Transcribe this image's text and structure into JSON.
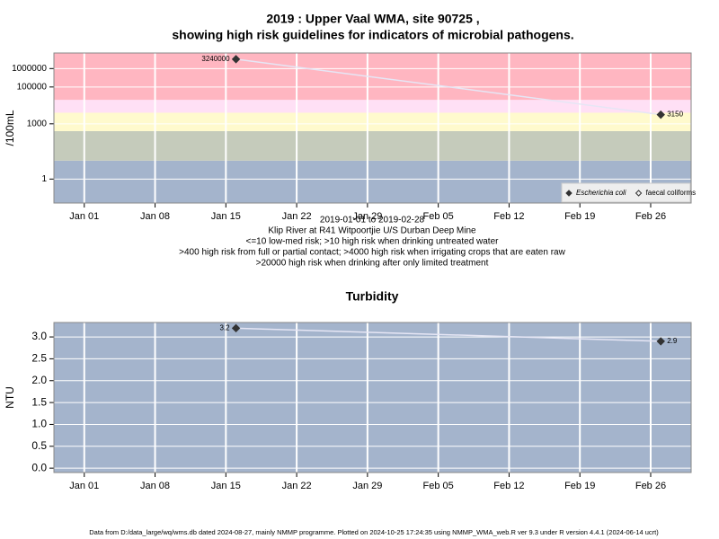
{
  "chart_data": [
    {
      "type": "line",
      "title": "2019 : Upper Vaal WMA, site 90725 ,",
      "subtitle": "showing high risk guidelines for indicators of microbial pathogens.",
      "y_label": "/100mL",
      "log_y": true,
      "notes": [
        "2019-01-01 to 2019-02-28",
        "Klip River at R41 Witpoortjie U/S Durban Deep Mine",
        "<=10 low-med risk; >10 high risk when drinking untreated water",
        ">400 high risk from full or partial contact; >4000 high risk when irrigating crops that are eaten raw",
        ">20000 high risk when drinking after only limited treatment"
      ],
      "x": [
        "2019-01-16",
        "2019-02-27"
      ],
      "xlim": [
        "2018-12-29",
        "2019-03-02"
      ],
      "xticks": [
        {
          "value": "2019-01-01",
          "label": "Jan 01"
        },
        {
          "value": "2019-01-08",
          "label": "Jan 08"
        },
        {
          "value": "2019-01-15",
          "label": "Jan 15"
        },
        {
          "value": "2019-01-22",
          "label": "Jan 22"
        },
        {
          "value": "2019-01-29",
          "label": "Jan 29"
        },
        {
          "value": "2019-02-05",
          "label": "Feb 05"
        },
        {
          "value": "2019-02-12",
          "label": "Feb 12"
        },
        {
          "value": "2019-02-19",
          "label": "Feb 19"
        },
        {
          "value": "2019-02-26",
          "label": "Feb 26"
        }
      ],
      "ylim": [
        0.05,
        7000000
      ],
      "yticks": [
        1,
        1000,
        100000,
        1000000
      ],
      "bands": [
        {
          "from": 0.05,
          "to": 10,
          "color": "#a4b4cc"
        },
        {
          "from": 10,
          "to": 400,
          "color": "#c5cbbb"
        },
        {
          "from": 400,
          "to": 4000,
          "color": "#fffacd"
        },
        {
          "from": 4000,
          "to": 20000,
          "color": "#ffe0f5"
        },
        {
          "from": 20000,
          "to": 7000000,
          "color": "#ffb6c1"
        }
      ],
      "grid": true,
      "legend": "bottom-right",
      "series": [
        {
          "name": "Escherichia coli",
          "color": "#333333",
          "marker": "filled",
          "values": [
            3240000,
            3150
          ]
        },
        {
          "name": "faecal coliforms",
          "color": "#333333",
          "marker": "open",
          "values": [
            null,
            null
          ]
        }
      ]
    },
    {
      "type": "line",
      "title": "Turbidity",
      "y_label": "NTU",
      "background": "#a4b4cc",
      "x": [
        "2019-01-16",
        "2019-02-27"
      ],
      "xlim": [
        "2018-12-29",
        "2019-03-02"
      ],
      "xticks": [
        {
          "value": "2019-01-01",
          "label": "Jan 01"
        },
        {
          "value": "2019-01-08",
          "label": "Jan 08"
        },
        {
          "value": "2019-01-15",
          "label": "Jan 15"
        },
        {
          "value": "2019-01-22",
          "label": "Jan 22"
        },
        {
          "value": "2019-01-29",
          "label": "Jan 29"
        },
        {
          "value": "2019-02-05",
          "label": "Feb 05"
        },
        {
          "value": "2019-02-12",
          "label": "Feb 12"
        },
        {
          "value": "2019-02-19",
          "label": "Feb 19"
        },
        {
          "value": "2019-02-26",
          "label": "Feb 26"
        }
      ],
      "ylim": [
        -0.1,
        3.33
      ],
      "yticks": [
        {
          "value": 0,
          "label": "0.0"
        },
        {
          "value": 0.5,
          "label": "0.5"
        },
        {
          "value": 1,
          "label": "1.0"
        },
        {
          "value": 1.5,
          "label": "1.5"
        },
        {
          "value": 2,
          "label": "2.0"
        },
        {
          "value": 2.5,
          "label": "2.5"
        },
        {
          "value": 3,
          "label": "3.0"
        }
      ],
      "grid": true,
      "series": [
        {
          "name": "Turbidity",
          "color": "#333333",
          "marker": "filled",
          "values": [
            3.2,
            2.9
          ]
        }
      ]
    }
  ],
  "footer": "Data from D:/data_large/wq/wms.db dated 2024-08-27, mainly NMMP programme. Plotted on 2024-10-25 17:24:35 using NMMP_WMA_web.R ver 9.3 under R version 4.4.1 (2024-06-14 ucrt)"
}
